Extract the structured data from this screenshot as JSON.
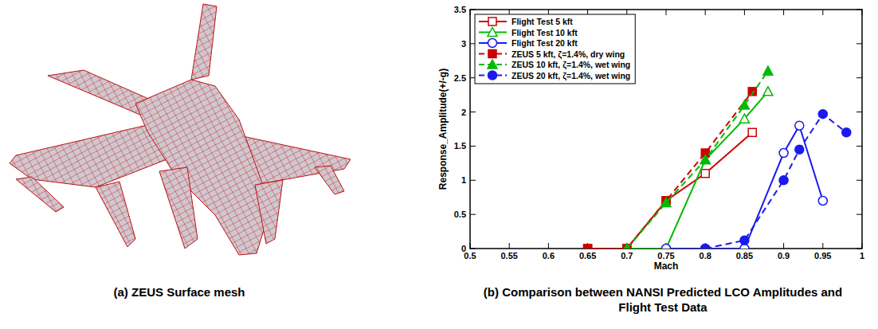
{
  "captions": [
    "(a)  ZEUS Surface mesh",
    "(b) Comparison between NANSI Predicted LCO Amplitudes and Flight Test Data"
  ],
  "chart_data": {
    "type": "line",
    "x_label": "Mach",
    "y_label": "Response_Amplitude(+/-g)",
    "xlim": [
      0.5,
      1
    ],
    "xticks": [
      0.5,
      0.55,
      0.6,
      0.65,
      0.7,
      0.75,
      0.8,
      0.85,
      0.9,
      0.95,
      1
    ],
    "ylim": [
      0,
      3.5
    ],
    "yticks": [
      0,
      0.5,
      1,
      1.5,
      2,
      2.5,
      3,
      3.5
    ],
    "legend": "top-left",
    "grid": false,
    "series": [
      {
        "name": "Flight Test 5 kft",
        "color": "#cc0000",
        "marker": "open-square",
        "line_style": "solid",
        "x": [
          0.65,
          0.7,
          0.75,
          0.8,
          0.86
        ],
        "values": [
          0,
          0,
          0.7,
          1.1,
          1.7
        ]
      },
      {
        "name": "Flight Test 10 kft",
        "color": "#00bb00",
        "marker": "open-triangle",
        "line_style": "solid",
        "x": [
          0.7,
          0.75,
          0.8,
          0.85,
          0.88
        ],
        "values": [
          0,
          0,
          1.3,
          1.9,
          2.3
        ]
      },
      {
        "name": "Flight Test 20 kft",
        "color": "#1a1aee",
        "marker": "open-circle",
        "line_style": "solid",
        "x": [
          0.75,
          0.8,
          0.85,
          0.9,
          0.92,
          0.95
        ],
        "values": [
          0,
          0,
          0,
          1.4,
          1.8,
          0.7
        ]
      },
      {
        "name": "ZEUS 5 kft, ζ=1.4%, dry wing",
        "color": "#cc0000",
        "marker": "square",
        "line_style": "dashed",
        "x": [
          0.65,
          0.7,
          0.75,
          0.8,
          0.86
        ],
        "values": [
          0,
          0,
          0.7,
          1.4,
          2.3
        ]
      },
      {
        "name": "ZEUS 10 kft, ζ=1.4%, wet wing",
        "color": "#00bb00",
        "marker": "triangle",
        "line_style": "dashed",
        "x": [
          0.7,
          0.75,
          0.8,
          0.85,
          0.88
        ],
        "values": [
          0,
          0.67,
          1.3,
          2.1,
          2.6
        ]
      },
      {
        "name": "ZEUS 20 kft, ζ=1.4%, wet wing",
        "color": "#1a1aee",
        "marker": "circle",
        "line_style": "dashed",
        "x": [
          0.8,
          0.85,
          0.9,
          0.92,
          0.95,
          0.98
        ],
        "values": [
          0,
          0.12,
          1.0,
          1.45,
          1.97,
          1.7
        ]
      }
    ]
  }
}
